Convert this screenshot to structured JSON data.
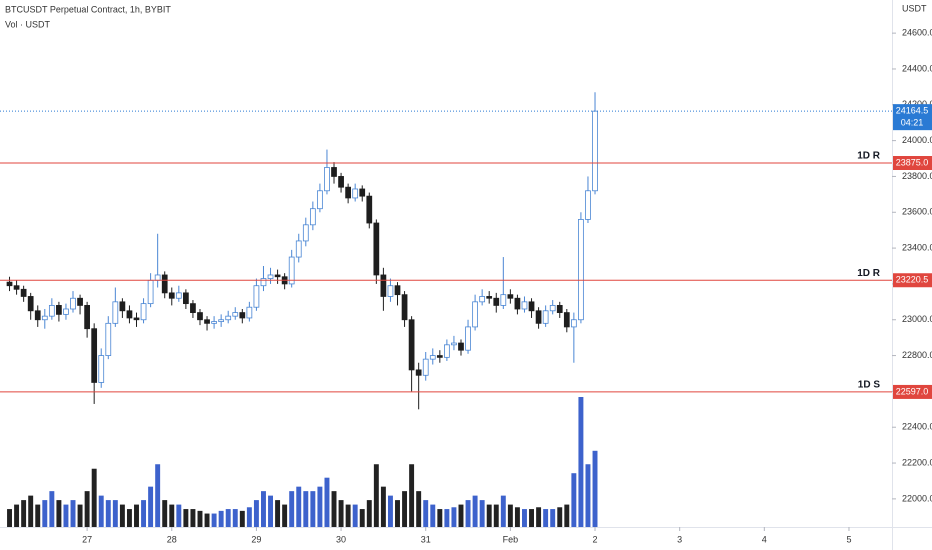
{
  "chart_data": {
    "type": "candlestick",
    "title": "BTCUSDT Perpetual Contract, 1h, BYBIT",
    "subtitle": "Vol · USDT",
    "y_axis_unit": "USDT",
    "xlim": [
      -24.7,
      228.2
    ],
    "xticks": [
      {
        "value": 0,
        "label": "27"
      },
      {
        "value": 24,
        "label": "28"
      },
      {
        "value": 48,
        "label": "29"
      },
      {
        "value": 72,
        "label": "30"
      },
      {
        "value": 96,
        "label": "31"
      },
      {
        "value": 120,
        "label": "Feb"
      },
      {
        "value": 144,
        "label": "2"
      },
      {
        "value": 168,
        "label": "3"
      },
      {
        "value": 192,
        "label": "4"
      },
      {
        "value": 216,
        "label": "5"
      }
    ],
    "ylim": [
      21843,
      24785
    ],
    "yticks": [
      {
        "value": 22000,
        "label": "22000.0"
      },
      {
        "value": 22200,
        "label": "22200.0"
      },
      {
        "value": 22400,
        "label": "22400.0"
      },
      {
        "value": 22600,
        "label": "22600.0"
      },
      {
        "value": 22800,
        "label": "22800.0"
      },
      {
        "value": 23000,
        "label": "23000.0"
      },
      {
        "value": 23200,
        "label": "23200.0"
      },
      {
        "value": 23400,
        "label": "23400.0"
      },
      {
        "value": 23600,
        "label": "23600.0"
      },
      {
        "value": 23800,
        "label": "23800.0"
      },
      {
        "value": 24000,
        "label": "24000.0"
      },
      {
        "value": 24200,
        "label": "24200.0"
      },
      {
        "value": 24400,
        "label": "24400.0"
      },
      {
        "value": 24600,
        "label": "24600.0"
      }
    ],
    "up_color": "#4a86d4",
    "down_color": "#1e1e1e",
    "volume_up_color": "#3d62cc",
    "volume_down_color": "#222222",
    "x": [
      -22,
      -20,
      -18,
      -16,
      -14,
      -12,
      -10,
      -8,
      -6,
      -4,
      -2,
      0,
      2,
      4,
      6,
      8,
      10,
      12,
      14,
      16,
      18,
      20,
      22,
      24,
      26,
      28,
      30,
      32,
      34,
      36,
      38,
      40,
      42,
      44,
      46,
      48,
      50,
      52,
      54,
      56,
      58,
      60,
      62,
      64,
      66,
      68,
      70,
      72,
      74,
      76,
      78,
      80,
      82,
      84,
      86,
      88,
      90,
      92,
      94,
      96,
      98,
      100,
      102,
      104,
      106,
      108,
      110,
      112,
      114,
      116,
      118,
      120,
      122,
      124,
      126,
      128,
      130,
      132,
      134,
      136,
      138,
      140,
      142,
      144
    ],
    "open": [
      23210,
      23190,
      23170,
      23130,
      23050,
      23000,
      23020,
      23080,
      23030,
      23060,
      23120,
      23080,
      22950,
      22650,
      22800,
      22980,
      23100,
      23050,
      23010,
      23000,
      23090,
      23220,
      23250,
      23150,
      23120,
      23150,
      23090,
      23040,
      23000,
      22980,
      22990,
      23000,
      23020,
      23040,
      23010,
      23070,
      23190,
      23230,
      23250,
      23240,
      23200,
      23350,
      23440,
      23530,
      23620,
      23720,
      23850,
      23800,
      23740,
      23680,
      23730,
      23690,
      23540,
      23250,
      23130,
      23190,
      23140,
      23000,
      22720,
      22690,
      22780,
      22800,
      22790,
      22860,
      22870,
      22830,
      22960,
      23100,
      23130,
      23120,
      23080,
      23140,
      23120,
      23060,
      23100,
      23050,
      22980,
      23050,
      23080,
      23040,
      22960,
      23000,
      23560,
      23720
    ],
    "high": [
      23240,
      23220,
      23190,
      23150,
      23080,
      23060,
      23120,
      23100,
      23090,
      23160,
      23140,
      23100,
      22980,
      22840,
      23020,
      23180,
      23120,
      23080,
      23040,
      23120,
      23260,
      23480,
      23270,
      23180,
      23190,
      23170,
      23110,
      23060,
      23020,
      23020,
      23030,
      23050,
      23070,
      23060,
      23100,
      23230,
      23300,
      23290,
      23280,
      23260,
      23390,
      23480,
      23570,
      23660,
      23760,
      23950,
      23880,
      23820,
      23760,
      23760,
      23750,
      23710,
      23560,
      23290,
      23230,
      23210,
      23160,
      23020,
      22760,
      22820,
      22840,
      22830,
      22890,
      22910,
      22890,
      23000,
      23140,
      23170,
      23160,
      23150,
      23350,
      23170,
      23140,
      23130,
      23120,
      23070,
      23080,
      23110,
      23100,
      23060,
      23040,
      23600,
      23800,
      24270
    ],
    "low": [
      23160,
      23140,
      23100,
      23000,
      22960,
      22950,
      23000,
      22990,
      23000,
      23040,
      23030,
      22900,
      22530,
      22620,
      22780,
      22960,
      23010,
      22980,
      22960,
      22980,
      23070,
      23180,
      23120,
      23080,
      23100,
      23060,
      23010,
      22970,
      22940,
      22950,
      22960,
      22980,
      23000,
      22980,
      22990,
      23050,
      23160,
      23200,
      23200,
      23170,
      23180,
      23320,
      23410,
      23500,
      23600,
      23700,
      23760,
      23710,
      23650,
      23660,
      23660,
      23510,
      23200,
      23050,
      23100,
      23080,
      22960,
      22600,
      22500,
      22660,
      22750,
      22760,
      22770,
      22830,
      22800,
      22810,
      22940,
      23080,
      23090,
      23040,
      23060,
      23090,
      23030,
      23040,
      23010,
      22950,
      22960,
      23030,
      23010,
      22930,
      22760,
      22980,
      23540,
      23700
    ],
    "close": [
      23190,
      23170,
      23130,
      23050,
      23000,
      23020,
      23080,
      23030,
      23060,
      23120,
      23080,
      22950,
      22650,
      22800,
      22980,
      23100,
      23050,
      23010,
      23000,
      23090,
      23220,
      23250,
      23150,
      23120,
      23150,
      23090,
      23040,
      23000,
      22980,
      22990,
      23000,
      23020,
      23040,
      23010,
      23070,
      23190,
      23230,
      23250,
      23240,
      23200,
      23350,
      23440,
      23530,
      23620,
      23720,
      23850,
      23800,
      23740,
      23680,
      23730,
      23690,
      23540,
      23250,
      23130,
      23190,
      23140,
      23000,
      22720,
      22690,
      22780,
      22800,
      22790,
      22860,
      22870,
      22830,
      22960,
      23100,
      23130,
      23120,
      23080,
      23140,
      23120,
      23060,
      23100,
      23050,
      22980,
      23050,
      23080,
      23040,
      22960,
      23000,
      23560,
      23720,
      24164.5
    ],
    "volume": [
      20,
      25,
      30,
      35,
      25,
      30,
      40,
      30,
      25,
      30,
      25,
      40,
      65,
      35,
      30,
      30,
      25,
      20,
      25,
      30,
      45,
      70,
      30,
      25,
      25,
      20,
      20,
      18,
      15,
      15,
      18,
      20,
      20,
      18,
      22,
      30,
      40,
      35,
      30,
      25,
      40,
      45,
      40,
      40,
      45,
      55,
      40,
      30,
      25,
      25,
      20,
      30,
      70,
      45,
      35,
      30,
      40,
      70,
      40,
      30,
      25,
      20,
      20,
      22,
      25,
      30,
      35,
      30,
      25,
      25,
      35,
      25,
      22,
      20,
      20,
      22,
      20,
      20,
      22,
      25,
      60,
      145,
      70,
      85
    ],
    "levels": [
      {
        "name": "1D R",
        "value": 23875,
        "label": "23875.0",
        "color": "#e0463e"
      },
      {
        "name": "1D R",
        "value": 23220.5,
        "label": "23220.5",
        "color": "#e0463e"
      },
      {
        "name": "1D S",
        "value": 22597,
        "label": "22597.0",
        "color": "#e0463e"
      }
    ],
    "last_price": {
      "value": 24164.5,
      "label": "24164.5",
      "countdown": "04:21",
      "color": "#2a7ad4"
    }
  }
}
